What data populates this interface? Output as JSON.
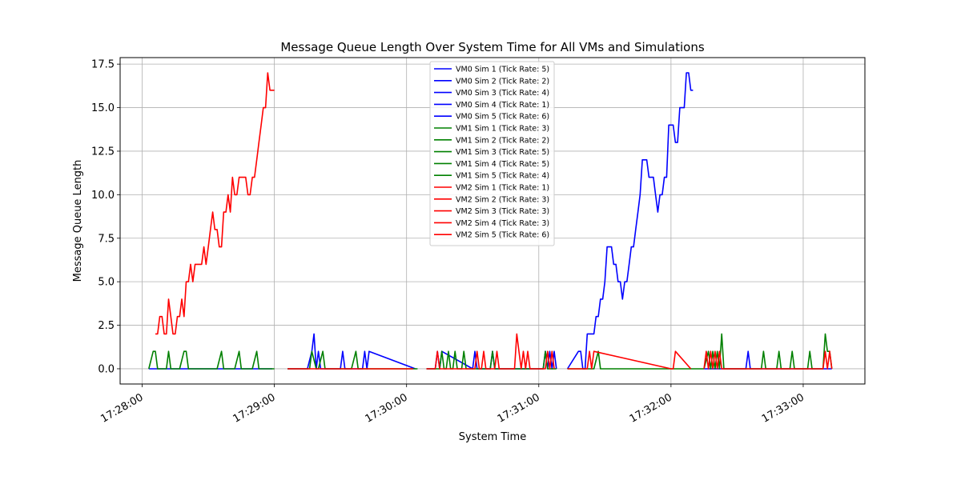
{
  "chart_data": {
    "type": "line",
    "title": "Message Queue Length Over System Time for All VMs and Simulations",
    "xlabel": "System Time",
    "ylabel": "Message Queue Length",
    "xlim": [
      "17:27:50",
      "17:33:28"
    ],
    "ylim": [
      -0.875,
      17.875
    ],
    "x_ticks": [
      "17:28:00",
      "17:29:00",
      "17:30:00",
      "17:31:00",
      "17:32:00",
      "17:33:00"
    ],
    "y_ticks": [
      "0.0",
      "2.5",
      "5.0",
      "7.5",
      "10.0",
      "12.5",
      "15.0",
      "17.5"
    ],
    "grid": true,
    "legend_position": "top-center",
    "colors": {
      "VM0": "#0000ff",
      "VM1": "#008000",
      "VM2": "#ff0000"
    },
    "series": [
      {
        "name": "VM0 Sim 1 (Tick Rate: 5)",
        "color": "#0000ff",
        "x": [
          "17:28:03",
          "17:28:59"
        ],
        "y": [
          0,
          0
        ]
      },
      {
        "name": "VM0 Sim 2 (Tick Rate: 2)",
        "color": "#0000ff",
        "x": [
          "17:29:06",
          "17:29:15",
          "17:29:17",
          "17:29:18",
          "17:29:19",
          "17:29:20",
          "17:29:21",
          "17:29:30",
          "17:29:31",
          "17:29:32",
          "17:29:40",
          "17:29:41",
          "17:29:42",
          "17:29:43",
          "17:30:04"
        ],
        "y": [
          0,
          0,
          1,
          2,
          0,
          1,
          0,
          0,
          1,
          0,
          0,
          1,
          0,
          1,
          0
        ]
      },
      {
        "name": "VM0 Sim 3 (Tick Rate: 4)",
        "color": "#0000ff",
        "x": [
          "17:30:09",
          "17:30:13",
          "17:30:14",
          "17:30:15",
          "17:30:16",
          "17:30:30",
          "17:30:31",
          "17:30:32",
          "17:30:38",
          "17:30:39",
          "17:30:40",
          "17:31:02",
          "17:31:03",
          "17:31:04",
          "17:31:05",
          "17:31:06",
          "17:31:07",
          "17:31:08"
        ],
        "y": [
          0,
          0,
          1,
          0,
          1,
          0,
          1,
          0,
          0,
          1,
          0,
          0,
          1,
          0,
          1,
          0,
          1,
          0
        ]
      },
      {
        "name": "VM0 Sim 4 (Tick Rate: 1)",
        "color": "#0000ff",
        "x": [
          "17:31:13",
          "17:31:18",
          "17:31:19",
          "17:31:20",
          "17:31:21",
          "17:31:22",
          "17:31:24",
          "17:31:25",
          "17:31:26",
          "17:31:27",
          "17:31:28",
          "17:31:29",
          "17:31:30",
          "17:31:31",
          "17:31:32",
          "17:31:33",
          "17:31:34",
          "17:31:35",
          "17:31:36",
          "17:31:37",
          "17:31:38",
          "17:31:39",
          "17:31:40",
          "17:31:41",
          "17:31:42",
          "17:31:43",
          "17:31:44",
          "17:31:45",
          "17:31:46",
          "17:31:47",
          "17:31:48",
          "17:31:49",
          "17:31:50",
          "17:31:51",
          "17:31:52",
          "17:31:53",
          "17:31:54",
          "17:31:55",
          "17:31:56",
          "17:31:57",
          "17:31:58",
          "17:31:59",
          "17:32:00",
          "17:32:01",
          "17:32:02",
          "17:32:03",
          "17:32:04",
          "17:32:05",
          "17:32:06",
          "17:32:07",
          "17:32:08",
          "17:32:09",
          "17:32:10"
        ],
        "y": [
          0,
          1,
          1,
          0,
          0,
          2,
          2,
          2,
          3,
          3,
          4,
          4,
          5,
          7,
          7,
          7,
          6,
          6,
          5,
          5,
          4,
          5,
          5,
          6,
          7,
          7,
          8,
          9,
          10,
          12,
          12,
          12,
          11,
          11,
          11,
          10,
          9,
          10,
          10,
          11,
          11,
          14,
          14,
          14,
          13,
          13,
          15,
          15,
          15,
          17,
          17,
          16,
          16
        ]
      },
      {
        "name": "VM0 Sim 5 (Tick Rate: 6)",
        "color": "#0000ff",
        "x": [
          "17:32:15",
          "17:32:34",
          "17:32:35",
          "17:32:36",
          "17:33:13"
        ],
        "y": [
          0,
          0,
          1,
          0,
          0
        ]
      },
      {
        "name": "VM1 Sim 1 (Tick Rate: 3)",
        "color": "#008000",
        "x": [
          "17:28:03",
          "17:28:05",
          "17:28:06",
          "17:28:07",
          "17:28:11",
          "17:28:12",
          "17:28:13",
          "17:28:17",
          "17:28:19",
          "17:28:20",
          "17:28:21",
          "17:28:34",
          "17:28:36",
          "17:28:37",
          "17:28:42",
          "17:28:44",
          "17:28:45",
          "17:28:50",
          "17:28:52",
          "17:28:53",
          "17:29:00"
        ],
        "y": [
          0,
          1,
          1,
          0,
          0,
          1,
          0,
          0,
          1,
          1,
          0,
          0,
          1,
          0,
          0,
          1,
          0,
          0,
          1,
          0,
          0
        ]
      },
      {
        "name": "VM1 Sim 2 (Tick Rate: 2)",
        "color": "#008000",
        "x": [
          "17:29:06",
          "17:29:16",
          "17:29:17",
          "17:29:19",
          "17:29:20",
          "17:29:22",
          "17:29:23",
          "17:29:35",
          "17:29:37",
          "17:29:38",
          "17:30:05"
        ],
        "y": [
          0,
          0,
          1,
          0,
          0,
          1,
          0,
          0,
          1,
          0,
          0
        ]
      },
      {
        "name": "VM1 Sim 3 (Tick Rate: 5)",
        "color": "#008000",
        "x": [
          "17:30:09",
          "17:30:15",
          "17:30:16",
          "17:30:17",
          "17:30:18",
          "17:30:19",
          "17:30:20",
          "17:30:21",
          "17:30:22",
          "17:30:23",
          "17:30:25",
          "17:30:26",
          "17:30:27",
          "17:30:38",
          "17:30:39",
          "17:30:40",
          "17:31:02",
          "17:31:03",
          "17:31:04",
          "17:31:08"
        ],
        "y": [
          0,
          0,
          1,
          0,
          0,
          1,
          0,
          0,
          1,
          0,
          0,
          1,
          0,
          0,
          1,
          0,
          0,
          1,
          0,
          0
        ]
      },
      {
        "name": "VM1 Sim 4 (Tick Rate: 5)",
        "color": "#008000",
        "x": [
          "17:31:13",
          "17:31:25",
          "17:31:27",
          "17:31:28",
          "17:31:29",
          "17:32:15"
        ],
        "y": [
          0,
          0,
          1,
          0,
          0,
          0
        ]
      },
      {
        "name": "VM1 Sim 5 (Tick Rate: 4)",
        "color": "#008000",
        "x": [
          "17:32:15",
          "17:32:17",
          "17:32:18",
          "17:32:19",
          "17:32:20",
          "17:32:21",
          "17:32:22",
          "17:32:23",
          "17:32:24",
          "17:32:41",
          "17:32:42",
          "17:32:43",
          "17:32:48",
          "17:32:49",
          "17:32:50",
          "17:32:54",
          "17:32:55",
          "17:32:56",
          "17:33:02",
          "17:33:03",
          "17:33:04",
          "17:33:09",
          "17:33:10",
          "17:33:11",
          "17:33:12",
          "17:33:13"
        ],
        "y": [
          0,
          1,
          0,
          1,
          0,
          1,
          0,
          2,
          0,
          0,
          1,
          0,
          0,
          1,
          0,
          0,
          1,
          0,
          0,
          1,
          0,
          0,
          2,
          1,
          1,
          0
        ]
      },
      {
        "name": "VM2 Sim 1 (Tick Rate: 1)",
        "color": "#ff0000",
        "x": [
          "17:28:06",
          "17:28:07",
          "17:28:08",
          "17:28:09",
          "17:28:10",
          "17:28:11",
          "17:28:12",
          "17:28:13",
          "17:28:14",
          "17:28:15",
          "17:28:16",
          "17:28:17",
          "17:28:18",
          "17:28:19",
          "17:28:20",
          "17:28:21",
          "17:28:22",
          "17:28:23",
          "17:28:24",
          "17:28:25",
          "17:28:26",
          "17:28:27",
          "17:28:28",
          "17:28:29",
          "17:28:30",
          "17:28:31",
          "17:28:32",
          "17:28:33",
          "17:28:34",
          "17:28:35",
          "17:28:36",
          "17:28:37",
          "17:28:38",
          "17:28:39",
          "17:28:40",
          "17:28:41",
          "17:28:42",
          "17:28:43",
          "17:28:44",
          "17:28:45",
          "17:28:46",
          "17:28:47",
          "17:28:48",
          "17:28:49",
          "17:28:50",
          "17:28:51",
          "17:28:52",
          "17:28:53",
          "17:28:54",
          "17:28:55",
          "17:28:56",
          "17:28:57",
          "17:28:58",
          "17:28:59",
          "17:29:00"
        ],
        "y": [
          2,
          2,
          3,
          3,
          2,
          2,
          4,
          3,
          2,
          2,
          3,
          3,
          4,
          3,
          5,
          5,
          6,
          5,
          6,
          6,
          6,
          6,
          7,
          6,
          7,
          8,
          9,
          8,
          8,
          7,
          7,
          9,
          9,
          10,
          9,
          11,
          10,
          10,
          11,
          11,
          11,
          11,
          10,
          10,
          11,
          11,
          12,
          13,
          14,
          15,
          15,
          17,
          16,
          16,
          16
        ]
      },
      {
        "name": "VM2 Sim 2 (Tick Rate: 3)",
        "color": "#ff0000",
        "x": [
          "17:29:06",
          "17:30:03"
        ],
        "y": [
          0,
          0
        ]
      },
      {
        "name": "VM2 Sim 3 (Tick Rate: 3)",
        "color": "#ff0000",
        "x": [
          "17:30:09",
          "17:30:13",
          "17:30:14",
          "17:30:15",
          "17:30:31",
          "17:30:32",
          "17:30:33",
          "17:30:34",
          "17:30:35",
          "17:30:36",
          "17:30:40",
          "17:30:41",
          "17:30:42",
          "17:30:49",
          "17:30:50",
          "17:30:51",
          "17:30:52",
          "17:30:53",
          "17:30:54",
          "17:30:55",
          "17:30:56",
          "17:31:03",
          "17:31:04",
          "17:31:05",
          "17:31:06",
          "17:31:07"
        ],
        "y": [
          0,
          0,
          1,
          0,
          0,
          1,
          0,
          0,
          1,
          0,
          0,
          1,
          0,
          0,
          2,
          1,
          0,
          1,
          0,
          1,
          0,
          0,
          1,
          0,
          1,
          0
        ]
      },
      {
        "name": "VM2 Sim 4 (Tick Rate: 3)",
        "color": "#ff0000",
        "x": [
          "17:31:13",
          "17:31:22",
          "17:31:23",
          "17:31:24",
          "17:31:25",
          "17:32:00",
          "17:32:01",
          "17:32:02",
          "17:32:09"
        ],
        "y": [
          0,
          0,
          1,
          0,
          1,
          0,
          0,
          1,
          0
        ]
      },
      {
        "name": "VM2 Sim 5 (Tick Rate: 6)",
        "color": "#ff0000",
        "x": [
          "17:32:15",
          "17:32:16",
          "17:32:17",
          "17:32:18",
          "17:32:19",
          "17:32:20",
          "17:32:21",
          "17:32:22",
          "17:32:23",
          "17:32:24",
          "17:33:09",
          "17:33:10",
          "17:33:11",
          "17:33:12",
          "17:33:13"
        ],
        "y": [
          0,
          1,
          0,
          1,
          0,
          1,
          0,
          1,
          0,
          0,
          0,
          1,
          0,
          1,
          0
        ]
      }
    ]
  }
}
